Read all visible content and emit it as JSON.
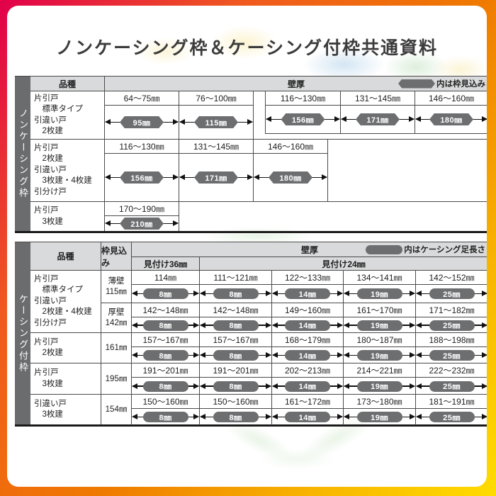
{
  "page": {
    "title": "ノンケーシング枠＆ケーシング付枠共通資料"
  },
  "table1": {
    "sidebar_label": "ノンケーシング枠",
    "header": {
      "kind": "品種",
      "wall": "壁厚",
      "legend": "内は枠見込み"
    },
    "rows": [
      {
        "kind_lines": [
          "片引戸",
          "　標準タイプ",
          "引違い戸",
          "　2枚建"
        ],
        "groups": [
          [
            {
              "range": "64～75㎜",
              "value": "95㎜"
            },
            {
              "range": "76～100㎜",
              "value": "115㎜"
            }
          ],
          [
            {
              "range": "116～130㎜",
              "value": "156㎜"
            },
            {
              "range": "131～145㎜",
              "value": "171㎜"
            },
            {
              "range": "146～160㎜",
              "value": "180㎜"
            }
          ]
        ]
      },
      {
        "kind_lines": [
          "片引戸",
          "　2枚建",
          "引違い戸",
          "　3枚建・4枚建",
          "引分け戸"
        ],
        "groups": [
          [
            {
              "range": "116～130㎜",
              "value": "156㎜"
            },
            {
              "range": "131～145㎜",
              "value": "171㎜"
            },
            {
              "range": "146～160㎜",
              "value": "180㎜"
            }
          ]
        ]
      },
      {
        "kind_lines": [
          "片引戸",
          "　3枚建"
        ],
        "groups": [
          [
            {
              "range": "170～190㎜",
              "value": "210㎜"
            }
          ]
        ]
      }
    ]
  },
  "table2": {
    "sidebar_label": "ケーシング付枠",
    "header": {
      "kind": "品種",
      "mikomi": "枠見込み",
      "wall": "壁厚",
      "legend": "内はケーシング足長さ",
      "sub_left": "見付け36㎜",
      "sub_right": "見付け24㎜"
    },
    "rows": [
      {
        "kind_lines": [
          "片引戸",
          "　標準タイプ",
          "引違い戸",
          "　2枚建・4枚建",
          "引分け戸"
        ],
        "subrows": [
          {
            "mikomi_lines": [
              "薄壁",
              "115㎜"
            ],
            "cells": [
              {
                "range": "114㎜",
                "value": "8㎜"
              },
              {
                "range": "111～121㎜",
                "value": "8㎜"
              },
              {
                "range": "122～133㎜",
                "value": "14㎜"
              },
              {
                "range": "134～141㎜",
                "value": "19㎜"
              },
              {
                "range": "142～152㎜",
                "value": "25㎜"
              }
            ]
          },
          {
            "mikomi_lines": [
              "厚壁",
              "142㎜"
            ],
            "cells": [
              {
                "range": "142～148㎜",
                "value": "8㎜"
              },
              {
                "range": "142～148㎜",
                "value": "8㎜"
              },
              {
                "range": "149～160㎜",
                "value": "14㎜"
              },
              {
                "range": "161～170㎜",
                "value": "19㎜"
              },
              {
                "range": "171～182㎜",
                "value": "25㎜"
              }
            ]
          }
        ]
      },
      {
        "kind_lines": [
          "片引戸",
          "　2枚建"
        ],
        "subrows": [
          {
            "mikomi_lines": [
              "161㎜"
            ],
            "cells": [
              {
                "range": "157～167㎜",
                "value": "8㎜"
              },
              {
                "range": "157～167㎜",
                "value": "8㎜"
              },
              {
                "range": "168～179㎜",
                "value": "14㎜"
              },
              {
                "range": "180～187㎜",
                "value": "19㎜"
              },
              {
                "range": "188～198㎜",
                "value": "25㎜"
              }
            ]
          }
        ]
      },
      {
        "kind_lines": [
          "片引戸",
          "　3枚建"
        ],
        "subrows": [
          {
            "mikomi_lines": [
              "195㎜"
            ],
            "cells": [
              {
                "range": "191～201㎜",
                "value": "8㎜"
              },
              {
                "range": "191～201㎜",
                "value": "8㎜"
              },
              {
                "range": "202～213㎜",
                "value": "14㎜"
              },
              {
                "range": "214～221㎜",
                "value": "19㎜"
              },
              {
                "range": "222～232㎜",
                "value": "25㎜"
              }
            ]
          }
        ]
      },
      {
        "kind_lines": [
          "引違い戸",
          "　3枚建"
        ],
        "subrows": [
          {
            "mikomi_lines": [
              "154㎜"
            ],
            "cells": [
              {
                "range": "150～160㎜",
                "value": "8㎜"
              },
              {
                "range": "150～160㎜",
                "value": "8㎜"
              },
              {
                "range": "161～172㎜",
                "value": "14㎜"
              },
              {
                "range": "173～180㎜",
                "value": "19㎜"
              },
              {
                "range": "181～191㎜",
                "value": "25㎜"
              }
            ]
          }
        ]
      }
    ]
  },
  "colors": {
    "frame_red": "#e1004b",
    "frame_orange": "#ef7a00",
    "frame_yellow": "#ffdc00",
    "header_bg": "#d9dadb",
    "sidebar_bg": "#6b6c6e",
    "badge_bg": "#6d6e70",
    "border": "#4a4a4a",
    "arrow": "#111111"
  }
}
